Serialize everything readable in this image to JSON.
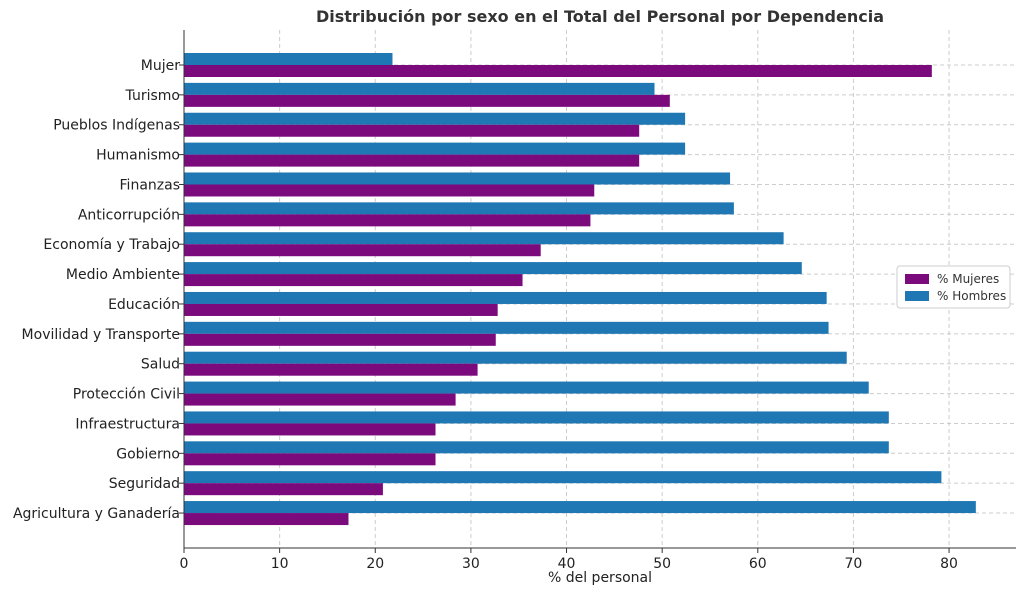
{
  "chart_data": {
    "type": "bar",
    "orientation": "horizontal",
    "title": "Distribución por sexo en el Total del Personal por Dependencia",
    "xlabel": "% del personal",
    "ylabel": "",
    "xlim": [
      0,
      87
    ],
    "xticks": [
      0,
      10,
      20,
      30,
      40,
      50,
      60,
      70,
      80
    ],
    "grid": true,
    "legend_position": "right",
    "categories": [
      "Mujer",
      "Turismo",
      "Pueblos Indígenas",
      "Humanismo",
      "Finanzas",
      "Anticorrupción",
      "Economía y Trabajo",
      "Medio Ambiente",
      "Educación",
      "Movilidad y Transporte",
      "Salud",
      "Protección Civil",
      "Infraestructura",
      "Gobierno",
      "Seguridad",
      "Agricultura y Ganadería"
    ],
    "series": [
      {
        "name": "% Mujeres",
        "color": "#7b0a7d",
        "values": [
          78.2,
          50.8,
          47.6,
          47.6,
          42.9,
          42.5,
          37.3,
          35.4,
          32.8,
          32.6,
          30.7,
          28.4,
          26.3,
          26.3,
          20.8,
          17.2
        ]
      },
      {
        "name": "% Hombres",
        "color": "#1f77b4",
        "values": [
          21.8,
          49.2,
          52.4,
          52.4,
          57.1,
          57.5,
          62.7,
          64.6,
          67.2,
          67.4,
          69.3,
          71.6,
          73.7,
          73.7,
          79.2,
          82.8
        ]
      }
    ]
  }
}
